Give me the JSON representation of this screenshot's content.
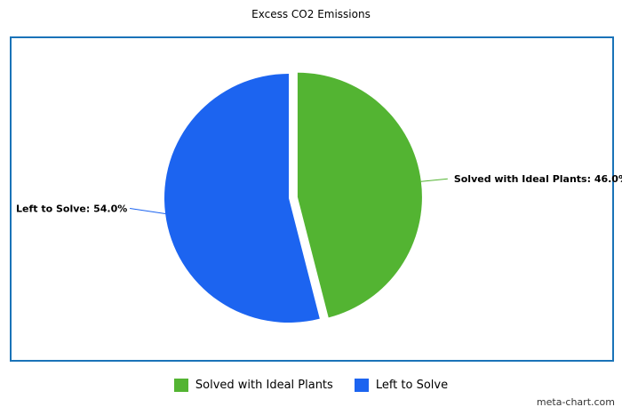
{
  "chart_data": {
    "type": "pie",
    "title": "Excess CO2 Emissions",
    "slices": [
      {
        "name": "Solved with Ideal Plants",
        "value": 46.0,
        "label": "Solved with Ideal Plants: 46.0%",
        "color": "#53b432",
        "exploded": true
      },
      {
        "name": "Left to Solve",
        "value": 54.0,
        "label": "Left to Solve: 54.0%",
        "color": "#1c64f0",
        "exploded": false
      }
    ],
    "legend_position": "bottom",
    "legend": [
      {
        "name": "Solved with Ideal Plants",
        "color": "#53b432"
      },
      {
        "name": "Left to Solve",
        "color": "#1c64f0"
      }
    ]
  },
  "frame_color": "#1a73b8",
  "watermark": "meta-chart.com"
}
